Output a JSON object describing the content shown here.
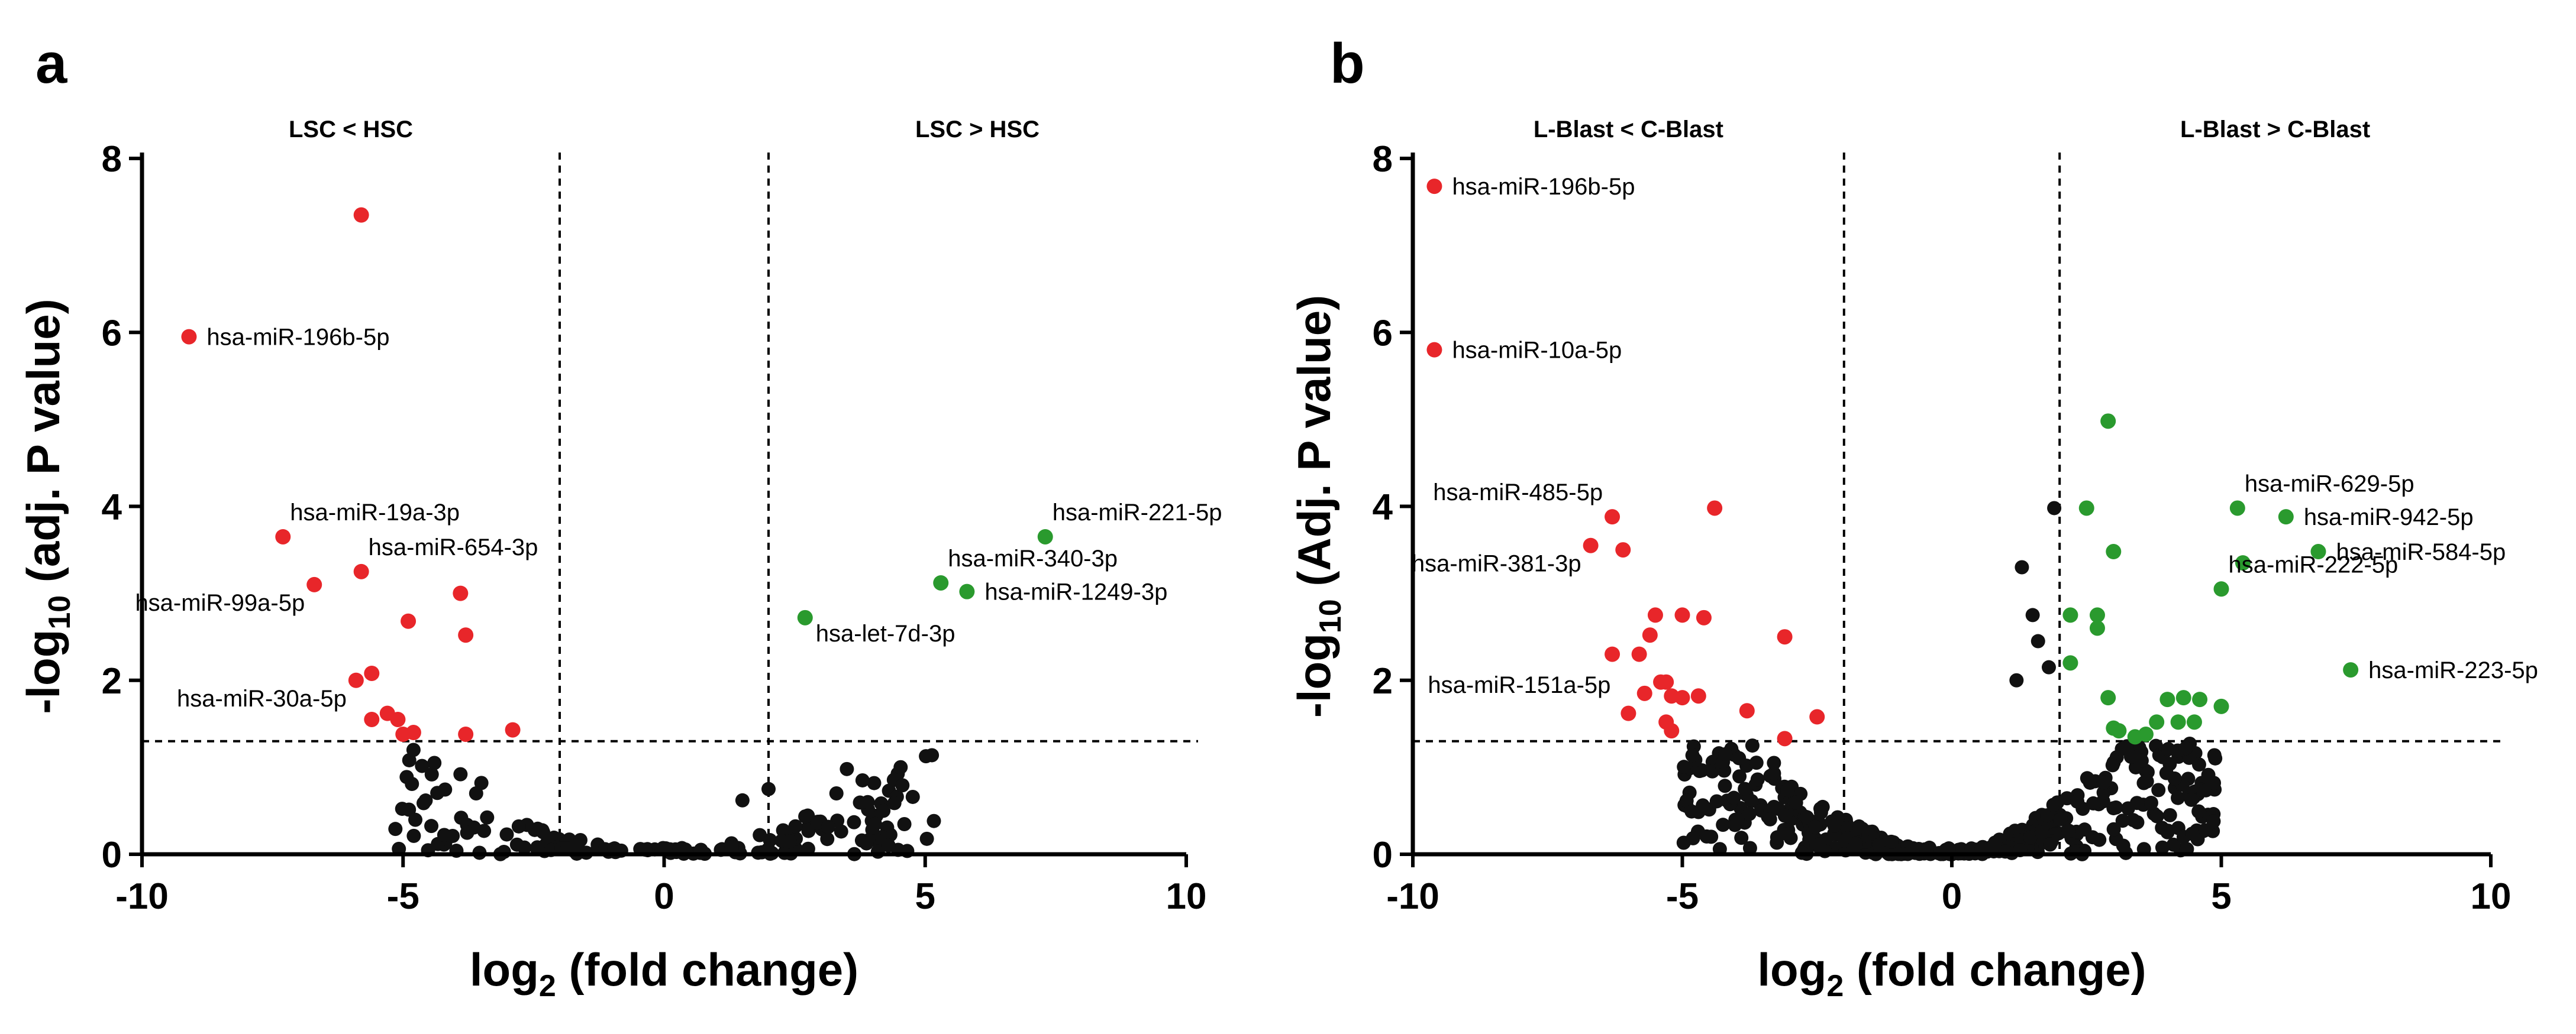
{
  "figure": {
    "panels": [
      {
        "letter": "a",
        "region_left": "LSC < HSC",
        "region_right": "LSC > HSC",
        "ylabel_main": "-log",
        "ylabel_sub": "10",
        "ylabel_rest": " (adj. P value)",
        "xlabel_main": "log",
        "xlabel_sub": "2",
        "xlabel_rest": " (fold change)"
      },
      {
        "letter": "b",
        "region_left": "L-Blast < C-Blast",
        "region_right": "L-Blast > C-Blast",
        "ylabel_main": "-log",
        "ylabel_sub": "10",
        "ylabel_rest": " (Adj. P value)",
        "xlabel_main": "log",
        "xlabel_sub": "2",
        "xlabel_rest": " (fold change)"
      }
    ]
  },
  "colors": {
    "down": "#e8262a",
    "up": "#2a9a2e",
    "ns": "#111111",
    "axis": "#000000"
  },
  "chart_data": [
    {
      "type": "scatter",
      "xlim": [
        -10,
        10
      ],
      "ylim": [
        0,
        8
      ],
      "xticks": [
        -10,
        -5,
        0,
        5,
        10
      ],
      "yticks": [
        0,
        2,
        4,
        6,
        8
      ],
      "fc_thresholds": [
        -2,
        2
      ],
      "p_threshold": 1.3,
      "grid": false,
      "legend": "none",
      "series": [
        {
          "color_key": "down",
          "points": [
            [
              -5.8,
              7.35
            ],
            [
              -9.1,
              5.95
            ],
            [
              -7.3,
              3.65
            ],
            [
              -6.7,
              3.1
            ],
            [
              -5.8,
              3.25
            ],
            [
              -4.9,
              2.68
            ],
            [
              -3.9,
              3.0
            ],
            [
              -3.8,
              2.52
            ],
            [
              -5.6,
              2.08
            ],
            [
              -5.9,
              2.0
            ],
            [
              -5.3,
              1.62
            ],
            [
              -5.1,
              1.55
            ],
            [
              -5.6,
              1.55
            ],
            [
              -3.8,
              1.38
            ],
            [
              -2.9,
              1.43
            ],
            [
              -5.0,
              1.38
            ],
            [
              -4.8,
              1.4
            ]
          ]
        },
        {
          "color_key": "up",
          "points": [
            [
              7.3,
              3.65
            ],
            [
              5.3,
              3.12
            ],
            [
              5.8,
              3.02
            ],
            [
              2.7,
              2.72
            ]
          ]
        }
      ],
      "labels": [
        {
          "text": "hsa-miR-196b-5p",
          "x": -9.1,
          "y": 5.95,
          "anchor": "right"
        },
        {
          "text": "hsa-miR-19a-3p",
          "x": -7.3,
          "y": 3.65,
          "anchor": "upright"
        },
        {
          "text": "hsa-miR-654-3p",
          "x": -5.8,
          "y": 3.25,
          "anchor": "upright"
        },
        {
          "text": "hsa-miR-99a-5p",
          "x": -6.7,
          "y": 3.1,
          "anchor": "lowleft"
        },
        {
          "text": "hsa-miR-30a-5p",
          "x": -5.9,
          "y": 2.0,
          "anchor": "lowleft"
        },
        {
          "text": "hsa-miR-221-5p",
          "x": 7.3,
          "y": 3.65,
          "anchor": "upright"
        },
        {
          "text": "hsa-miR-340-3p",
          "x": 5.3,
          "y": 3.12,
          "anchor": "upright"
        },
        {
          "text": "hsa-miR-1249-3p",
          "x": 5.8,
          "y": 3.02,
          "anchor": "right"
        },
        {
          "text": "hsa-let-7d-3p",
          "x": 2.7,
          "y": 2.72,
          "anchor": "lowright"
        }
      ]
    },
    {
      "type": "scatter",
      "xlim": [
        -10,
        10
      ],
      "ylim": [
        0,
        8
      ],
      "xticks": [
        -10,
        -5,
        0,
        5,
        10
      ],
      "yticks": [
        0,
        2,
        4,
        6,
        8
      ],
      "fc_thresholds": [
        -2,
        2
      ],
      "p_threshold": 1.3,
      "grid": false,
      "legend": "none",
      "series": [
        {
          "color_key": "down",
          "points": [
            [
              -9.6,
              7.68
            ],
            [
              -9.6,
              5.8
            ],
            [
              -6.3,
              3.88
            ],
            [
              -6.7,
              3.55
            ],
            [
              -6.1,
              3.5
            ],
            [
              -4.4,
              3.98
            ],
            [
              -5.6,
              2.52
            ],
            [
              -5.8,
              2.3
            ],
            [
              -6.3,
              2.3
            ],
            [
              -6.0,
              1.62
            ],
            [
              -5.0,
              2.75
            ],
            [
              -4.6,
              2.72
            ],
            [
              -5.5,
              2.75
            ],
            [
              -5.4,
              1.98
            ],
            [
              -5.3,
              1.98
            ],
            [
              -5.2,
              1.82
            ],
            [
              -5.0,
              1.8
            ],
            [
              -4.7,
              1.82
            ],
            [
              -5.3,
              1.52
            ],
            [
              -5.2,
              1.42
            ],
            [
              -3.1,
              2.5
            ],
            [
              -3.8,
              1.65
            ],
            [
              -2.5,
              1.58
            ],
            [
              -3.1,
              1.33
            ],
            [
              -5.7,
              1.85
            ]
          ]
        },
        {
          "color_key": "up",
          "points": [
            [
              2.9,
              4.98
            ],
            [
              2.5,
              3.98
            ],
            [
              3.0,
              3.48
            ],
            [
              2.2,
              2.75
            ],
            [
              2.7,
              2.75
            ],
            [
              2.7,
              2.6
            ],
            [
              2.2,
              2.2
            ],
            [
              2.9,
              1.8
            ],
            [
              3.0,
              1.45
            ],
            [
              3.1,
              1.42
            ],
            [
              3.4,
              1.35
            ],
            [
              3.6,
              1.38
            ],
            [
              3.8,
              1.52
            ],
            [
              4.0,
              1.78
            ],
            [
              4.2,
              1.52
            ],
            [
              4.3,
              1.8
            ],
            [
              4.5,
              1.52
            ],
            [
              4.6,
              1.78
            ],
            [
              5.0,
              1.7
            ],
            [
              5.3,
              3.98
            ],
            [
              6.2,
              3.88
            ],
            [
              6.8,
              3.48
            ],
            [
              5.4,
              3.35
            ],
            [
              5.0,
              3.05
            ],
            [
              7.4,
              2.12
            ]
          ]
        }
      ],
      "labels": [
        {
          "text": "hsa-miR-196b-5p",
          "x": -9.6,
          "y": 7.68,
          "anchor": "right"
        },
        {
          "text": "hsa-miR-10a-5p",
          "x": -9.6,
          "y": 5.8,
          "anchor": "right"
        },
        {
          "text": "hsa-miR-485-5p",
          "x": -6.3,
          "y": 3.88,
          "anchor": "upleft"
        },
        {
          "text": "hsa-miR-381-3p",
          "x": -6.7,
          "y": 3.55,
          "anchor": "lowleft"
        },
        {
          "text": "hsa-miR-151a-5p",
          "x": -6.0,
          "y": 1.95,
          "anchor": "left"
        },
        {
          "text": "hsa-miR-629-5p",
          "x": 5.3,
          "y": 3.98,
          "anchor": "upright"
        },
        {
          "text": "hsa-miR-942-5p",
          "x": 6.2,
          "y": 3.88,
          "anchor": "right"
        },
        {
          "text": "hsa-miR-584-5p",
          "x": 6.8,
          "y": 3.48,
          "anchor": "right"
        },
        {
          "text": "hsa-miR-222-5p",
          "x": 5.0,
          "y": 3.05,
          "anchor": "upright"
        },
        {
          "text": "hsa-miR-223-5p",
          "x": 7.4,
          "y": 2.12,
          "anchor": "right"
        }
      ]
    }
  ]
}
